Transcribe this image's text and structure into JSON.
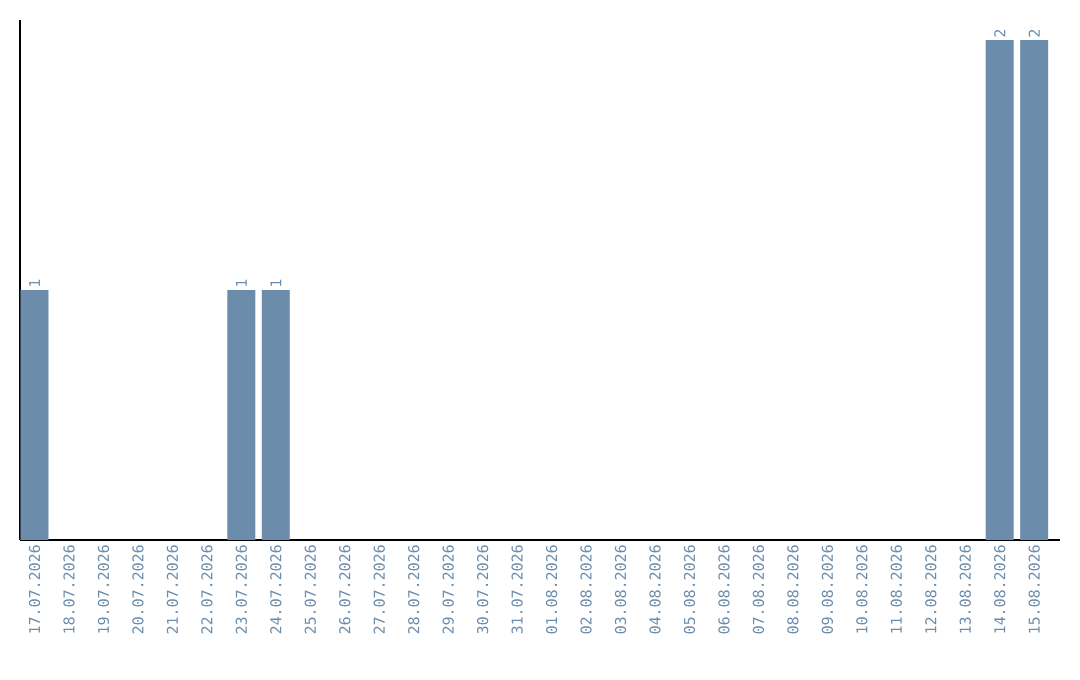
{
  "chart_data": {
    "type": "bar",
    "categories": [
      "17.07.2026",
      "18.07.2026",
      "19.07.2026",
      "20.07.2026",
      "21.07.2026",
      "22.07.2026",
      "23.07.2026",
      "24.07.2026",
      "25.07.2026",
      "26.07.2026",
      "27.07.2026",
      "28.07.2026",
      "29.07.2026",
      "30.07.2026",
      "31.07.2026",
      "01.08.2026",
      "02.08.2026",
      "03.08.2026",
      "04.08.2026",
      "05.08.2026",
      "06.08.2026",
      "07.08.2026",
      "08.08.2026",
      "09.08.2026",
      "10.08.2026",
      "11.08.2026",
      "12.08.2026",
      "13.08.2026",
      "14.08.2026",
      "15.08.2026"
    ],
    "values": [
      1,
      0,
      0,
      0,
      0,
      0,
      1,
      1,
      0,
      0,
      0,
      0,
      0,
      0,
      0,
      0,
      0,
      0,
      0,
      0,
      0,
      0,
      0,
      0,
      0,
      0,
      0,
      0,
      2,
      2
    ],
    "value_labels": [
      "1",
      null,
      null,
      null,
      null,
      null,
      "1",
      "1",
      null,
      null,
      null,
      null,
      null,
      null,
      null,
      null,
      null,
      null,
      null,
      null,
      null,
      null,
      null,
      null,
      null,
      null,
      null,
      null,
      "2",
      "2"
    ],
    "color": "#6b8cab"
  }
}
